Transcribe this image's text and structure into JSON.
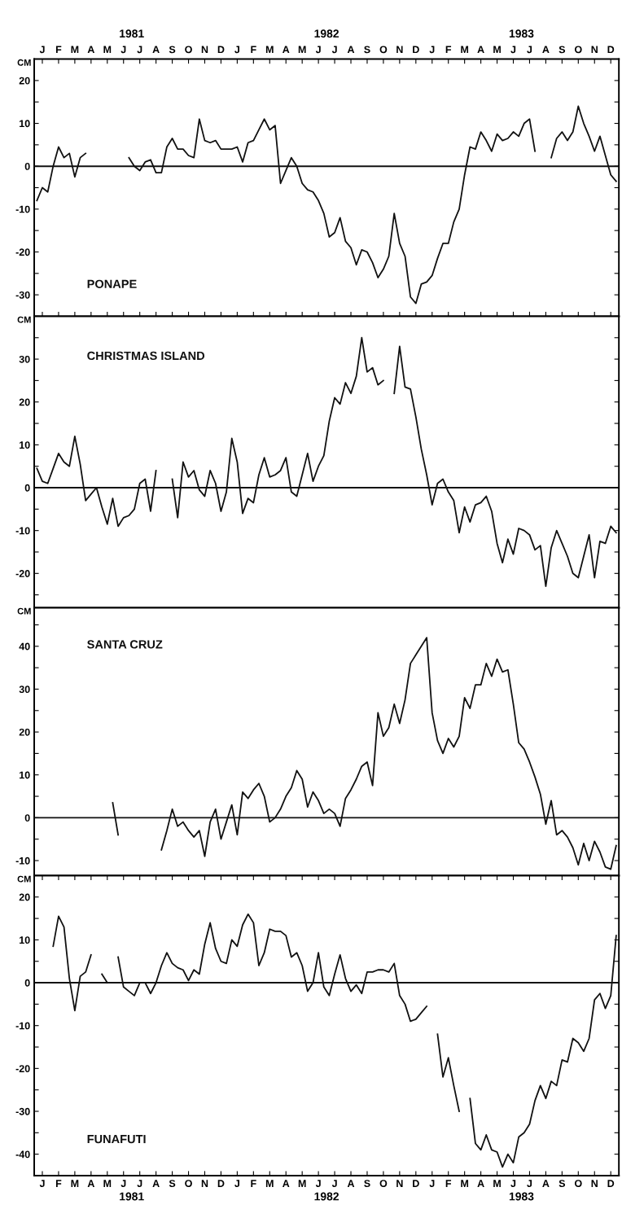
{
  "chart_data": [
    {
      "type": "line",
      "legend": "bottom left",
      "ylabel": "CM",
      "ylim": [
        -35,
        25
      ],
      "grid": false,
      "marker": "none",
      "line_style": "solid",
      "yticks": [
        {
          "value": -35,
          "label": null
        },
        -30,
        {
          "value": -25,
          "label": null
        },
        -20,
        {
          "value": -15,
          "label": null
        },
        -10,
        {
          "value": -5,
          "label": null
        },
        0,
        {
          "value": 5,
          "label": null
        },
        10,
        {
          "value": 15,
          "label": null
        },
        20
      ],
      "categories": [
        null,
        "J",
        null,
        null,
        "F",
        null,
        null,
        "M",
        null,
        null,
        "A",
        null,
        null,
        "M",
        null,
        null,
        "J",
        null,
        null,
        "J",
        null,
        null,
        "A",
        null,
        null,
        "S",
        null,
        null,
        "O",
        null,
        null,
        "N",
        null,
        null,
        "D",
        null,
        null,
        "J",
        null,
        null,
        "F",
        null,
        null,
        "M",
        null,
        null,
        "A",
        null,
        null,
        "M",
        null,
        null,
        "J",
        null,
        null,
        "J",
        null,
        null,
        "A",
        null,
        null,
        "S",
        null,
        null,
        "O",
        null,
        null,
        "N",
        null,
        null,
        "D",
        null,
        null,
        "J",
        null,
        null,
        "F",
        null,
        null,
        "M",
        null,
        null,
        "A",
        null,
        null,
        "M",
        null,
        null,
        "J",
        null,
        null,
        "J",
        null,
        null,
        "A",
        null,
        null,
        "S",
        null,
        null,
        "O",
        null,
        null,
        "N",
        null,
        null,
        "D",
        null
      ],
      "annotations": [
        "1981",
        "1982",
        "1983"
      ],
      "ref_lines": [
        {
          "axis": "y",
          "value": 0,
          "color": "#111111"
        }
      ],
      "series": [
        {
          "name": "PONAPE",
          "color": "#111111",
          "values": [
            -8,
            -5,
            -6,
            0,
            4.5,
            2,
            3,
            -2.5,
            2,
            3,
            null,
            null,
            null,
            null,
            null,
            null,
            null,
            2,
            0,
            -1,
            1,
            1.5,
            -1.5,
            -1.5,
            4.5,
            6.5,
            4,
            4,
            2.5,
            2,
            11,
            6,
            5.5,
            6,
            4,
            4,
            4,
            4.5,
            1,
            5.5,
            6,
            8.5,
            11,
            8.5,
            9.5,
            -4,
            -1,
            2,
            0,
            -4,
            -5.5,
            -6,
            -8,
            -11,
            -16.5,
            -15.5,
            -12,
            -17.5,
            -19,
            -23,
            -19.5,
            -20,
            -22.5,
            -26,
            -24,
            -21,
            -11,
            -18,
            -21,
            -30.5,
            -32,
            -27.5,
            -27,
            -25.5,
            -21.5,
            -18,
            -18,
            -13,
            -10,
            -2,
            4.5,
            4,
            8,
            6,
            3.5,
            7.5,
            6,
            6.5,
            8,
            7,
            10,
            11,
            3.5,
            null,
            null,
            2,
            6.5,
            8,
            6,
            8,
            14,
            10,
            7,
            3.5,
            7,
            2.5,
            -2,
            -3.5
          ]
        }
      ]
    },
    {
      "type": "line",
      "legend": "top left",
      "ylabel": "CM",
      "ylim": [
        -28,
        40
      ],
      "tick_labels": "y",
      "grid": false,
      "marker": "none",
      "line_style": "solid",
      "yticks": [
        {
          "value": -25,
          "label": null
        },
        -20,
        {
          "value": -15,
          "label": null
        },
        -10,
        {
          "value": -5,
          "label": null
        },
        0,
        {
          "value": 5,
          "label": null
        },
        10,
        {
          "value": 15,
          "label": null
        },
        20,
        {
          "value": 25,
          "label": null
        },
        30,
        {
          "value": 35,
          "label": null
        }
      ],
      "ref_lines": [
        {
          "axis": "y",
          "value": 0,
          "color": "#111111"
        }
      ],
      "categories": [
        null,
        null,
        null,
        null,
        null,
        null,
        null,
        null,
        null,
        null,
        null,
        null,
        null,
        null,
        null,
        null,
        null,
        null,
        null,
        null,
        null,
        null,
        null,
        null,
        null,
        null,
        null,
        null,
        null,
        null,
        null,
        null,
        null,
        null,
        null,
        null,
        null,
        null,
        null,
        null,
        null,
        null,
        null,
        null,
        null,
        null,
        null,
        null,
        null,
        null,
        null,
        null,
        null,
        null,
        null,
        null,
        null,
        null,
        null,
        null,
        null,
        null,
        null,
        null,
        null,
        null,
        null,
        null,
        null,
        null,
        null,
        null,
        null,
        null,
        null,
        null,
        null,
        null,
        null,
        null,
        null,
        null,
        null,
        null,
        null,
        null,
        null,
        null,
        null,
        null,
        null,
        null,
        null,
        null,
        null,
        null,
        null,
        null,
        null,
        null,
        null,
        null,
        null,
        null,
        null,
        null,
        null,
        null
      ],
      "series": [
        {
          "name": "CHRISTMAS ISLAND",
          "color": "#111111",
          "values": [
            4.5,
            1.5,
            1,
            4.5,
            8,
            6,
            5,
            12,
            5.5,
            -3,
            -1.5,
            0,
            -4.5,
            -8.5,
            -2.5,
            -9,
            -7,
            -6.5,
            -5,
            1,
            2,
            -5.5,
            4,
            null,
            null,
            2,
            -7,
            6,
            2.5,
            4,
            -0.5,
            -2,
            4,
            1,
            -5.5,
            -1,
            11.5,
            6,
            -6,
            -2.5,
            -3.5,
            3,
            7,
            2.5,
            3,
            4,
            7,
            -1,
            -2,
            3,
            8,
            1.5,
            5,
            7.5,
            15.5,
            21,
            19.5,
            24.5,
            22,
            26,
            35,
            27,
            28,
            24,
            25,
            null,
            22,
            33,
            23.5,
            23,
            16.5,
            9,
            3,
            -4,
            1,
            2,
            -1,
            -3,
            -10.5,
            -4.5,
            -8,
            -4,
            -3.5,
            -2,
            -5.5,
            -13,
            -17.5,
            -12,
            -15.5,
            -9.5,
            -10,
            -11,
            -14.5,
            -13.5,
            -23,
            -14,
            -10,
            -13,
            -16,
            -20,
            -21,
            -16,
            -11,
            -21,
            -12.5,
            -13,
            -9,
            -10.5
          ]
        }
      ]
    },
    {
      "type": "line",
      "legend": "top left",
      "ylabel": "CM",
      "ylim": [
        -13.5,
        49
      ],
      "tick_labels": "y",
      "grid": false,
      "marker": "none",
      "line_style": "solid",
      "yticks": [
        -10,
        {
          "value": -5,
          "label": null
        },
        0,
        {
          "value": 5,
          "label": null
        },
        10,
        {
          "value": 15,
          "label": null
        },
        20,
        {
          "value": 25,
          "label": null
        },
        30,
        {
          "value": 35,
          "label": null
        },
        40,
        {
          "value": 45,
          "label": null
        }
      ],
      "categories": [
        null,
        null,
        null,
        null,
        null,
        null,
        null,
        null,
        null,
        null,
        null,
        null,
        null,
        null,
        null,
        null,
        null,
        null,
        null,
        null,
        null,
        null,
        null,
        null,
        null,
        null,
        null,
        null,
        null,
        null,
        null,
        null,
        null,
        null,
        null,
        null,
        null,
        null,
        null,
        null,
        null,
        null,
        null,
        null,
        null,
        null,
        null,
        null,
        null,
        null,
        null,
        null,
        null,
        null,
        null,
        null,
        null,
        null,
        null,
        null,
        null,
        null,
        null,
        null,
        null,
        null,
        null,
        null,
        null,
        null,
        null,
        null,
        null,
        null,
        null,
        null,
        null,
        null,
        null,
        null,
        null,
        null,
        null,
        null,
        null,
        null,
        null,
        null,
        null,
        null,
        null,
        null,
        null,
        null,
        null,
        null,
        null,
        null,
        null,
        null,
        null,
        null,
        null,
        null,
        null,
        null,
        null,
        null
      ],
      "ref_lines": [
        {
          "axis": "y",
          "value": 0,
          "color": "#111111"
        }
      ],
      "series": [
        {
          "name": "SANTA CRUZ",
          "color": "#111111",
          "values": [
            null,
            null,
            null,
            null,
            null,
            null,
            null,
            null,
            null,
            null,
            null,
            null,
            null,
            null,
            3.5,
            -4,
            null,
            null,
            null,
            null,
            null,
            null,
            null,
            -7.5,
            -3,
            2,
            -2,
            -1,
            -3,
            -4.5,
            -3,
            -9,
            -1,
            2,
            -5,
            -1,
            3,
            -4,
            6,
            4.5,
            6.5,
            8,
            5,
            -1,
            0,
            2,
            5,
            7,
            11,
            9,
            2.5,
            6,
            4,
            1,
            2,
            1,
            -2,
            4.5,
            6.5,
            9,
            12,
            13,
            7.5,
            24.5,
            19,
            21,
            26.5,
            22,
            27.5,
            36,
            38,
            40,
            42,
            24.5,
            18,
            15,
            18.5,
            16.5,
            19,
            28,
            25.5,
            31,
            31,
            36,
            33,
            37,
            34,
            34.5,
            26.5,
            17.5,
            16,
            13,
            9.5,
            5.5,
            -1.5,
            4,
            -4,
            -3,
            -4.5,
            -7,
            -11,
            -6,
            -10,
            -5.5,
            -8,
            -11.5,
            -12,
            -6.5
          ]
        }
      ]
    },
    {
      "type": "line",
      "legend": "bottom left",
      "ylabel": "CM",
      "ylim": [
        -45,
        25
      ],
      "grid": false,
      "marker": "none",
      "line_style": "solid",
      "yticks": [
        {
          "value": -45,
          "label": null
        },
        -40,
        {
          "value": -35,
          "label": null
        },
        -30,
        {
          "value": -25,
          "label": null
        },
        -20,
        {
          "value": -15,
          "label": null
        },
        -10,
        {
          "value": -5,
          "label": null
        },
        0,
        {
          "value": 5,
          "label": null
        },
        10,
        {
          "value": 15,
          "label": null
        },
        20
      ],
      "categories": [
        null,
        "J",
        null,
        null,
        "F",
        null,
        null,
        "M",
        null,
        null,
        "A",
        null,
        null,
        "M",
        null,
        null,
        "J",
        null,
        null,
        "J",
        null,
        null,
        "A",
        null,
        null,
        "S",
        null,
        null,
        "O",
        null,
        null,
        "N",
        null,
        null,
        "D",
        null,
        null,
        "J",
        null,
        null,
        "F",
        null,
        null,
        "M",
        null,
        null,
        "A",
        null,
        null,
        "M",
        null,
        null,
        "J",
        null,
        null,
        "J",
        null,
        null,
        "A",
        null,
        null,
        "S",
        null,
        null,
        "O",
        null,
        null,
        "N",
        null,
        null,
        "D",
        null,
        null,
        "J",
        null,
        null,
        "F",
        null,
        null,
        "M",
        null,
        null,
        "A",
        null,
        null,
        "M",
        null,
        null,
        "J",
        null,
        null,
        "J",
        null,
        null,
        "A",
        null,
        null,
        "S",
        null,
        null,
        "O",
        null,
        null,
        "N",
        null,
        null,
        "D",
        null
      ],
      "annotations": [
        "1981",
        "1982",
        "1983"
      ],
      "ref_lines": [
        {
          "axis": "y",
          "value": 0,
          "color": "#111111"
        }
      ],
      "series": [
        {
          "name": "FUNAFUTI",
          "color": "#111111",
          "values": [
            null,
            null,
            null,
            8.5,
            15.5,
            13,
            1,
            -6.5,
            1.5,
            2.5,
            6.5,
            null,
            2,
            0,
            null,
            6,
            -1,
            -2,
            -3,
            0,
            0,
            -2.5,
            0,
            4,
            7,
            4.5,
            3.5,
            3,
            0.5,
            3,
            2,
            9,
            14,
            8,
            5,
            4.5,
            10,
            8.5,
            13.5,
            16,
            14,
            4,
            7,
            12.5,
            12,
            12,
            11,
            6,
            7,
            4,
            -2,
            0,
            7,
            -1,
            -3,
            2,
            6.5,
            1,
            -2,
            -0.5,
            -2.5,
            2.5,
            2.5,
            3,
            3,
            2.5,
            4.5,
            -3,
            -5,
            -9,
            -8.5,
            -7,
            -5.5,
            null,
            -12,
            -22,
            -17.5,
            -24,
            -30,
            null,
            -27,
            -37.5,
            -39,
            -35.5,
            -39,
            -39.5,
            -43,
            -40,
            -42,
            -36,
            -35,
            -33,
            -27.5,
            -24,
            -27,
            -23,
            -24,
            -18,
            -18.5,
            -13,
            -14,
            -16,
            -13,
            -4,
            -2.5,
            -6,
            -3,
            11
          ]
        }
      ]
    }
  ]
}
